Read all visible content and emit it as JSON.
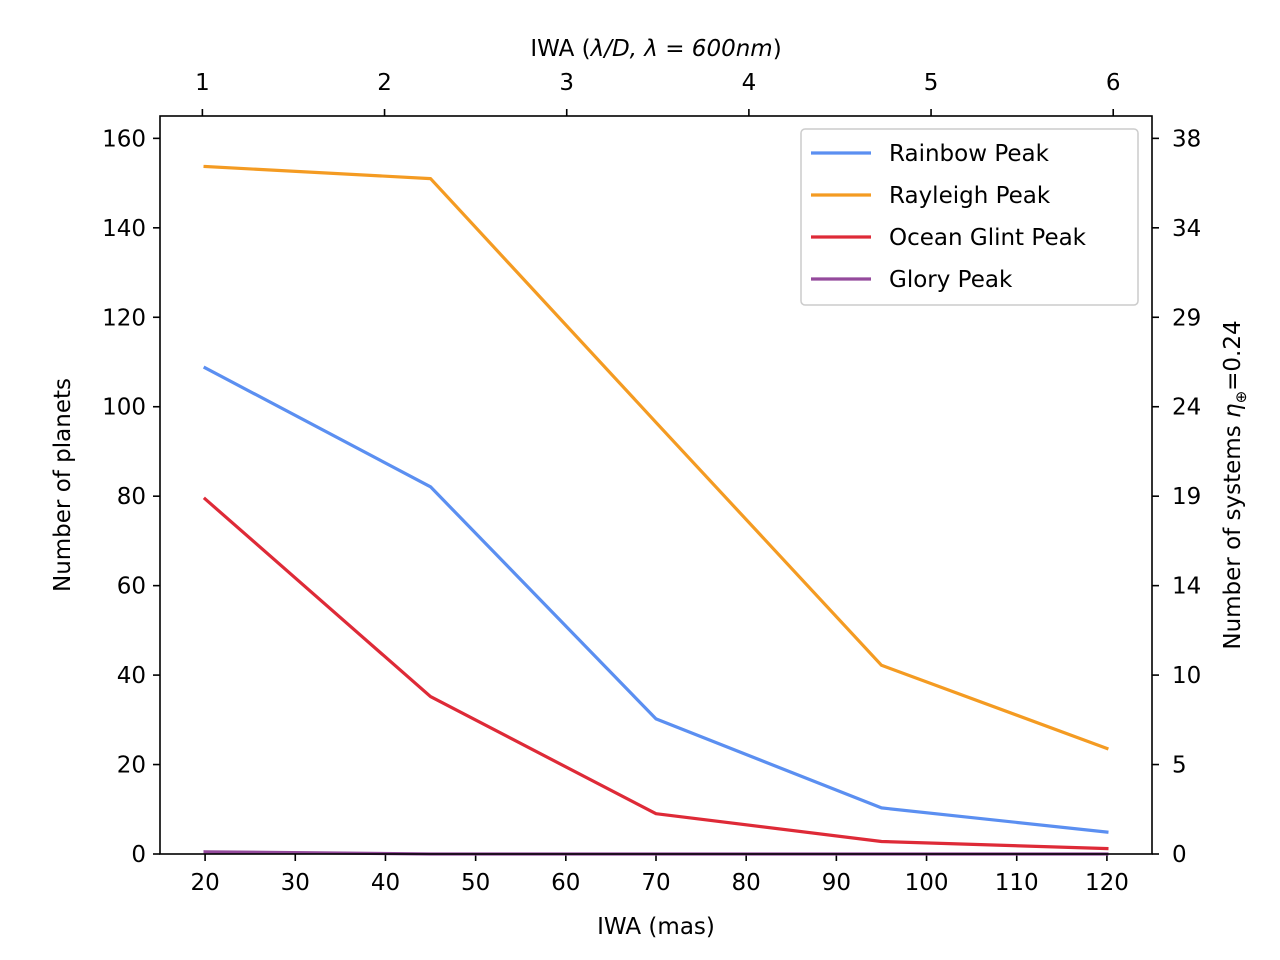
{
  "chart_data": {
    "type": "line",
    "x": [
      20,
      45,
      70,
      95,
      120
    ],
    "series": [
      {
        "name": "Rainbow Peak",
        "values": [
          108.7,
          82.1,
          30.2,
          10.3,
          4.9
        ],
        "color": "#5b8ff1"
      },
      {
        "name": "Rayleigh Peak",
        "values": [
          153.7,
          151.0,
          96.5,
          42.2,
          23.6
        ],
        "color": "#f49b22"
      },
      {
        "name": "Ocean Glint Peak",
        "values": [
          79.4,
          35.2,
          9.0,
          2.8,
          1.2
        ],
        "color": "#de2a37"
      },
      {
        "name": "Glory Peak",
        "values": [
          0.5,
          0.0,
          0.0,
          0.0,
          0.0
        ],
        "color": "#944a9c"
      }
    ],
    "xlabel": "IWA (mas)",
    "ylabel": "Number of planets",
    "xlim": [
      15,
      125
    ],
    "ylim": [
      0,
      165
    ],
    "xticks": [
      20,
      30,
      40,
      50,
      60,
      70,
      80,
      90,
      100,
      110,
      120
    ],
    "yticks": [
      0,
      20,
      40,
      60,
      80,
      100,
      120,
      140,
      160
    ],
    "secondary_x": {
      "label_prefix": "IWA (",
      "label_math": "λ/D, λ = 600nm",
      "label_suffix": ")",
      "tick_positions_mas": [
        19.7,
        39.9,
        60.1,
        80.3,
        100.5,
        120.7
      ],
      "tick_labels": [
        "1",
        "2",
        "3",
        "4",
        "5",
        "6"
      ]
    },
    "secondary_y": {
      "label_prefix": "Number of systems ",
      "label_eta": "η",
      "label_sub": "⊕",
      "label_suffix": "=0.24",
      "tick_positions_planets": [
        0,
        20,
        40,
        60,
        80,
        100,
        120,
        140,
        160
      ],
      "tick_labels": [
        "0",
        "5",
        "10",
        "14",
        "19",
        "24",
        "29",
        "34",
        "38"
      ]
    },
    "legend": "top-right",
    "grid": false
  }
}
